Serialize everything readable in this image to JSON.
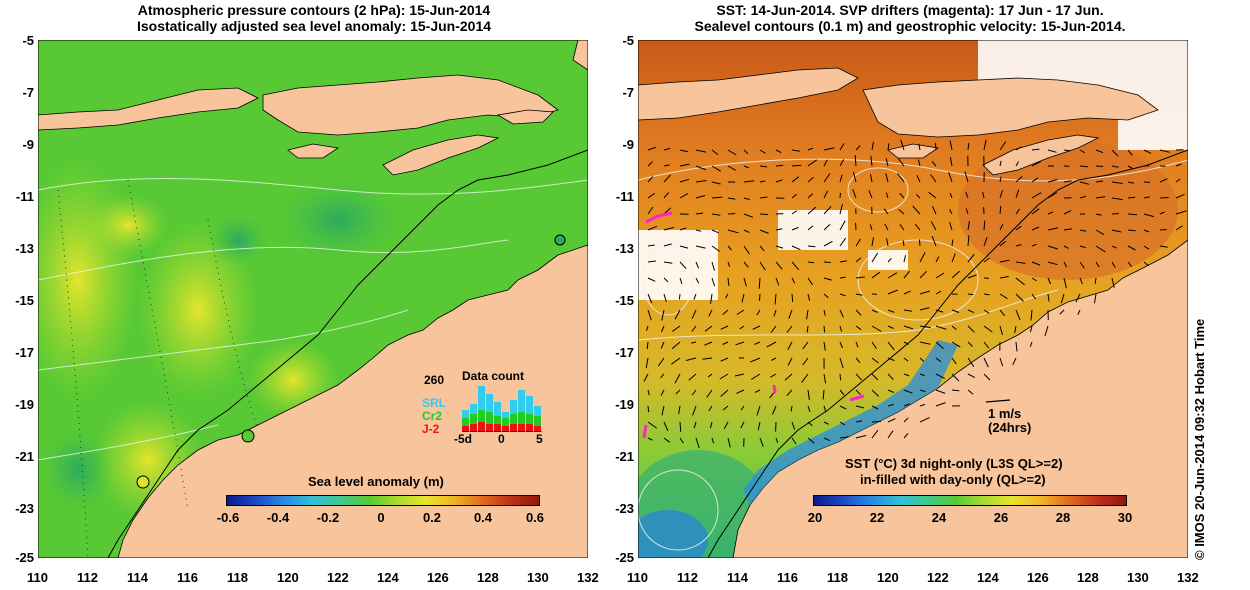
{
  "left_panel": {
    "title_line1": "Atmospheric pressure contours (2 hPa): 15-Jun-2014",
    "title_line2": "Isostatically adjusted sea level anomaly: 15-Jun-2014",
    "colorbar": {
      "title": "Sea level anomaly (m)",
      "ticks": [
        "-0.6",
        "-0.4",
        "-0.2",
        "0",
        "0.2",
        "0.4",
        "0.6"
      ]
    },
    "inset": {
      "max_label": "260",
      "title": "Data count",
      "series": [
        {
          "name": "SRL",
          "color": "#33ccee"
        },
        {
          "name": "Cr2",
          "color": "#22cc22"
        },
        {
          "name": "J-2",
          "color": "#ee1111"
        }
      ],
      "x_ticks": [
        "-5d",
        "0",
        "5"
      ]
    }
  },
  "right_panel": {
    "title_line1": "SST: 14-Jun-2014. SVP drifters (magenta): 17 Jun - 17 Jun.",
    "title_line2": "Sealevel contours (0.1 m) and geostrophic velocity: 15-Jun-2014.",
    "velocity_scale": {
      "label": "1 m/s",
      "sublabel": "(24hrs)"
    },
    "colorbar": {
      "title_line1": "SST (°C)  3d night-only (L3S QL>=2)",
      "title_line2": "in-filled with day-only (QL>=2)",
      "ticks": [
        "20",
        "22",
        "24",
        "26",
        "28",
        "30"
      ]
    }
  },
  "axes": {
    "y_ticks": [
      "-5",
      "-7",
      "-9",
      "-11",
      "-13",
      "-15",
      "-17",
      "-19",
      "-21",
      "-23",
      "-25"
    ],
    "x_ticks": [
      "110",
      "112",
      "114",
      "116",
      "118",
      "120",
      "122",
      "124",
      "126",
      "128",
      "130",
      "132"
    ]
  },
  "credit": "© IMOS 20-Jun-2014 09:32 Hobart Time",
  "colors": {
    "land": "#f8c49c",
    "ocean_green": "#5ccc2c",
    "sst_orange": "#e8a020",
    "sst_green": "#44bb44",
    "drifter": "#ff22cc"
  }
}
